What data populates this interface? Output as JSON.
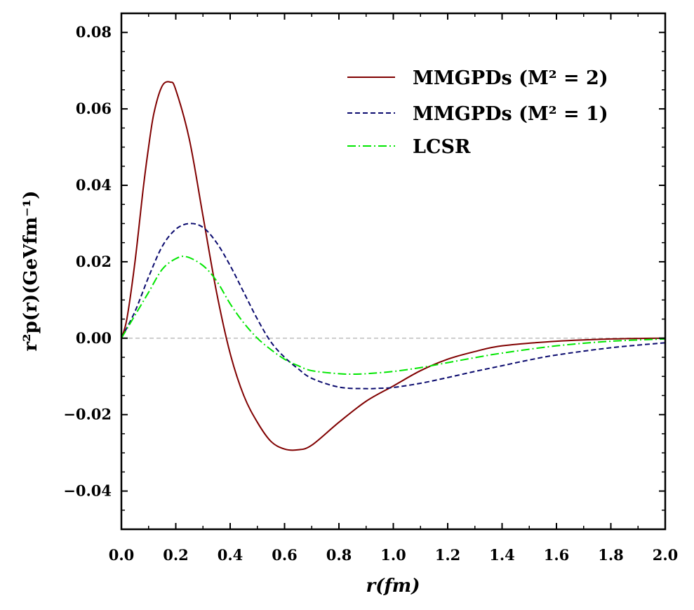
{
  "chart_data": {
    "type": "line",
    "xlabel": "r(fm)",
    "ylabel": "r²p(r)(GeVfm⁻¹)",
    "xlim": [
      0,
      2.0
    ],
    "ylim": [
      -0.05,
      0.085
    ],
    "x_ticks": [
      0.0,
      0.2,
      0.4,
      0.6,
      0.8,
      1.0,
      1.2,
      1.4,
      1.6,
      1.8,
      2.0
    ],
    "x_tick_labels": [
      "0.0",
      "0.2",
      "0.4",
      "0.6",
      "0.8",
      "1.0",
      "1.2",
      "1.4",
      "1.6",
      "1.8",
      "2.0"
    ],
    "y_ticks": [
      -0.04,
      -0.02,
      0.0,
      0.02,
      0.04,
      0.06,
      0.08
    ],
    "y_tick_labels": [
      "−0.04",
      "−0.02",
      "0.00",
      "0.02",
      "0.04",
      "0.06",
      "0.08"
    ],
    "reference_line_y": 0.0,
    "legend_position": "top-right",
    "series": [
      {
        "name": "MMGPDs (M² = 2)",
        "color": "#800000",
        "style": "solid",
        "x": [
          0,
          0.02,
          0.05,
          0.08,
          0.1,
          0.12,
          0.15,
          0.18,
          0.2,
          0.25,
          0.3,
          0.35,
          0.4,
          0.45,
          0.5,
          0.55,
          0.6,
          0.65,
          0.7,
          0.8,
          0.9,
          1.0,
          1.1,
          1.2,
          1.3,
          1.4,
          1.6,
          1.8,
          2.0
        ],
        "y": [
          0,
          0.005,
          0.02,
          0.039,
          0.05,
          0.059,
          0.066,
          0.067,
          0.065,
          0.052,
          0.032,
          0.012,
          -0.004,
          -0.015,
          -0.022,
          -0.027,
          -0.029,
          -0.0292,
          -0.028,
          -0.022,
          -0.0165,
          -0.0125,
          -0.0085,
          -0.0055,
          -0.0035,
          -0.002,
          -0.0008,
          -0.0002,
          0
        ]
      },
      {
        "name": "MMGPDs (M² = 1)",
        "color": "#0a0a6e",
        "style": "dashed",
        "x": [
          0,
          0.05,
          0.1,
          0.15,
          0.2,
          0.25,
          0.3,
          0.35,
          0.4,
          0.45,
          0.5,
          0.55,
          0.6,
          0.65,
          0.7,
          0.8,
          0.9,
          0.95,
          1.0,
          1.1,
          1.2,
          1.3,
          1.4,
          1.5,
          1.6,
          1.8,
          2.0
        ],
        "y": [
          0,
          0.007,
          0.016,
          0.024,
          0.0285,
          0.03,
          0.029,
          0.025,
          0.019,
          0.012,
          0.005,
          -0.001,
          -0.005,
          -0.008,
          -0.0105,
          -0.0128,
          -0.0132,
          -0.0131,
          -0.0129,
          -0.0118,
          -0.0103,
          -0.0087,
          -0.0072,
          -0.0057,
          -0.0044,
          -0.0025,
          -0.0012
        ]
      },
      {
        "name": "LCSR",
        "color": "#00e600",
        "style": "dashdot",
        "x": [
          0,
          0.05,
          0.1,
          0.15,
          0.2,
          0.24,
          0.3,
          0.35,
          0.4,
          0.45,
          0.5,
          0.55,
          0.6,
          0.65,
          0.7,
          0.8,
          0.85,
          0.9,
          1.0,
          1.1,
          1.2,
          1.3,
          1.4,
          1.6,
          1.8,
          2.0
        ],
        "y": [
          0,
          0.006,
          0.012,
          0.018,
          0.0208,
          0.0213,
          0.019,
          0.015,
          0.009,
          0.004,
          0.0,
          -0.003,
          -0.0055,
          -0.0072,
          -0.0085,
          -0.0093,
          -0.0094,
          -0.0093,
          -0.0087,
          -0.0077,
          -0.0064,
          -0.0051,
          -0.0039,
          -0.002,
          -0.0008,
          -0.0002
        ]
      }
    ]
  }
}
